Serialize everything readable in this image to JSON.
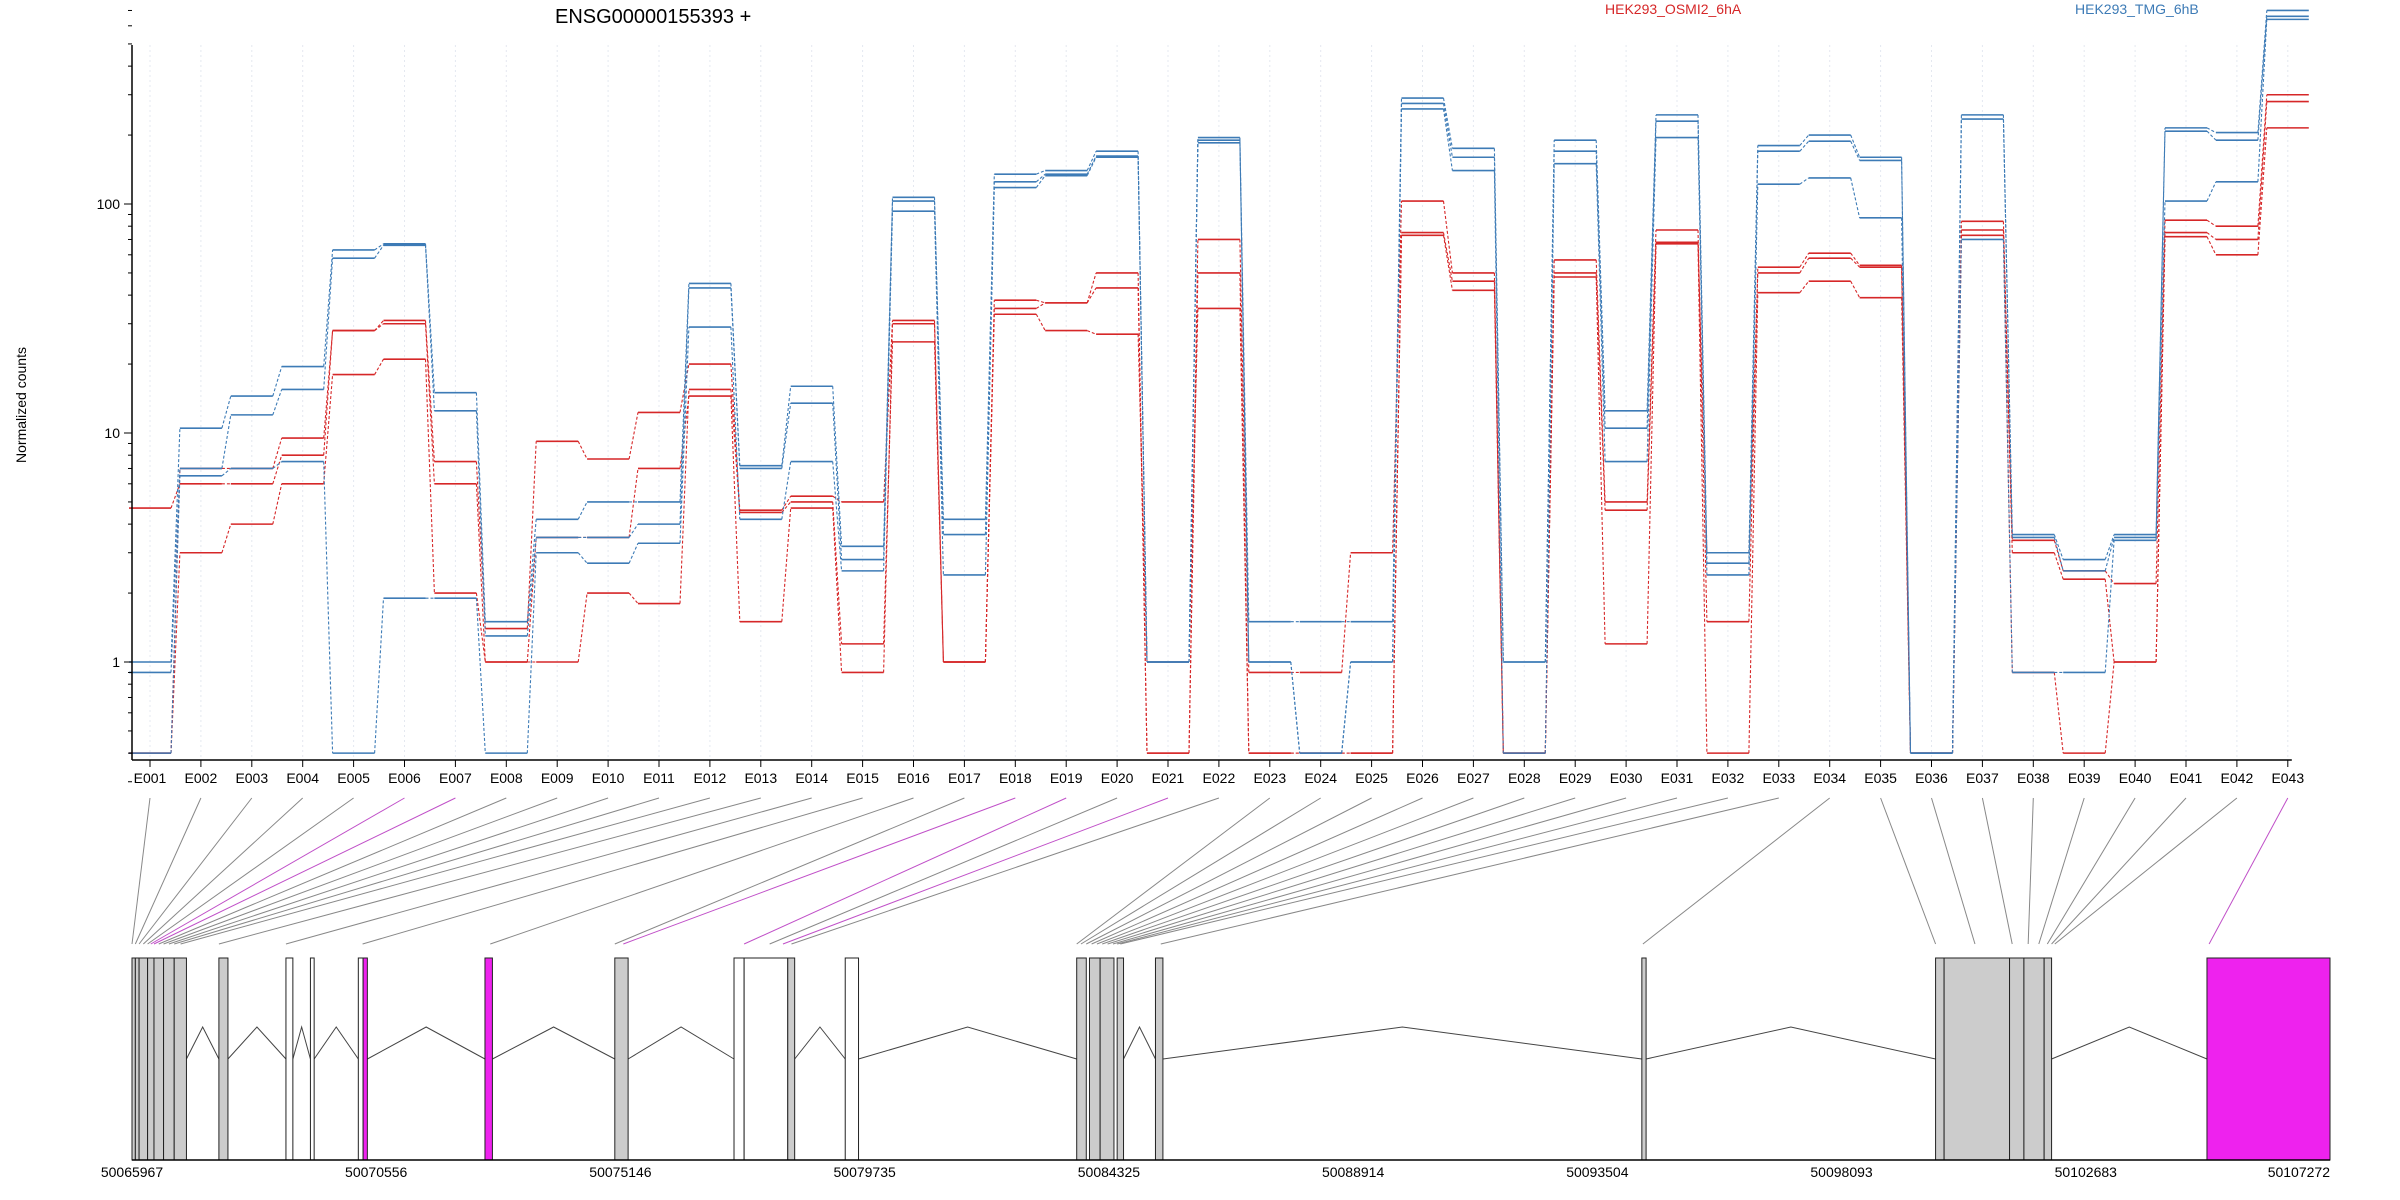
{
  "gene_title": "ENSG00000155393 +",
  "colors": {
    "osmi": "#d62728",
    "tmg": "#3d7bb6",
    "highlight": "#ee22ee",
    "exon_fill": "#cccccc",
    "connector": "#888888"
  },
  "chart_data": {
    "type": "line",
    "title": "ENSG00000155393 +",
    "ylabel": "Normalized counts",
    "yscale": "log",
    "ylim": [
      0.3,
      1000
    ],
    "yticks": [
      {
        "value": 1,
        "label": "1"
      },
      {
        "value": 10,
        "label": "10"
      },
      {
        "value": 100,
        "label": "100"
      }
    ],
    "grid": "vertical",
    "legend": [
      {
        "label": "HEK293_OSMI2_6hA",
        "color": "#d62728"
      },
      {
        "label": "HEK293_TMG_6hB",
        "color": "#3d7bb6"
      }
    ],
    "categories": [
      "E001",
      "E002",
      "E003",
      "E004",
      "E005",
      "E006",
      "E007",
      "E008",
      "E009",
      "E010",
      "E011",
      "E012",
      "E013",
      "E014",
      "E015",
      "E016",
      "E017",
      "E018",
      "E019",
      "E020",
      "E021",
      "E022",
      "E023",
      "E024",
      "E025",
      "E026",
      "E027",
      "E028",
      "E029",
      "E030",
      "E031",
      "E032",
      "E033",
      "E034",
      "E035",
      "E036",
      "E037",
      "E038",
      "E039",
      "E040",
      "E041",
      "E042",
      "E043"
    ],
    "series": [
      {
        "group": "osmi",
        "values": [
          0.4,
          7,
          7,
          9.5,
          28,
          31,
          7.5,
          1.4,
          9.2,
          7.7,
          12.3,
          20,
          4.6,
          5.3,
          5,
          31,
          1,
          38,
          37,
          50,
          0.4,
          70,
          0.9,
          0.9,
          3,
          103,
          50,
          0.4,
          57,
          5,
          77,
          1.5,
          53,
          61,
          54,
          0.4,
          84,
          3.4,
          2.5,
          2.2,
          85,
          80,
          300
        ]
      },
      {
        "group": "osmi",
        "values": [
          4.7,
          6,
          6,
          8,
          28,
          30,
          6,
          1,
          1,
          2,
          1.8,
          15.5,
          4.5,
          5,
          1.2,
          25,
          1,
          35,
          37,
          43,
          0.4,
          50,
          0.4,
          0.4,
          0.4,
          75,
          46,
          0.4,
          50,
          4.6,
          68,
          3,
          50,
          58,
          53,
          0.4,
          77,
          3,
          2.3,
          1,
          75,
          70,
          280
        ]
      },
      {
        "group": "osmi",
        "values": [
          0.4,
          3,
          4,
          6,
          18,
          21,
          2,
          1,
          3.5,
          3.5,
          7,
          14.5,
          1.5,
          4.7,
          0.9,
          30,
          1,
          33,
          28,
          27,
          1,
          35,
          0.4,
          0.4,
          0.4,
          73,
          42,
          0.4,
          48,
          1.2,
          67,
          0.4,
          41,
          46,
          39,
          0.4,
          73,
          0.9,
          0.4,
          1,
          72,
          60,
          215
        ]
      },
      {
        "group": "tmg",
        "values": [
          1,
          10.5,
          14.5,
          19.5,
          63,
          67,
          15,
          1.5,
          4.2,
          5,
          5,
          45,
          7.2,
          16,
          3.2,
          107,
          4.2,
          135,
          140,
          170,
          1,
          195,
          1.5,
          1.5,
          1.5,
          290,
          175,
          1,
          190,
          12.5,
          245,
          3,
          180,
          200,
          160,
          0.4,
          245,
          3.6,
          2.8,
          3.6,
          215,
          205,
          700
        ]
      },
      {
        "group": "tmg",
        "values": [
          0.9,
          7,
          12,
          15.5,
          58,
          66,
          12.5,
          1.3,
          3.5,
          3.5,
          4,
          43,
          7,
          13.5,
          2.8,
          103,
          3.6,
          125,
          135,
          162,
          1,
          190,
          1,
          0.4,
          1,
          275,
          160,
          1,
          170,
          10.5,
          230,
          2.7,
          170,
          188,
          155,
          0.4,
          235,
          3.5,
          2.5,
          3.5,
          208,
          190,
          660
        ]
      },
      {
        "group": "tmg",
        "values": [
          0.4,
          6.5,
          7,
          7.5,
          0.4,
          1.9,
          1.9,
          0.4,
          3,
          2.7,
          3.3,
          29,
          4.2,
          7.5,
          2.5,
          93,
          2.4,
          118,
          133,
          160,
          1,
          185,
          1,
          0.4,
          1,
          260,
          140,
          0.4,
          150,
          7.5,
          195,
          2.4,
          122,
          130,
          87,
          0.4,
          70,
          0.9,
          0.9,
          3.4,
          103,
          125,
          640
        ]
      }
    ]
  },
  "gene_model": {
    "coordinate_labels": [
      "50065967",
      "50070556",
      "50075146",
      "50079735",
      "50084325",
      "50088914",
      "50093504",
      "50098093",
      "50102683",
      "50107272"
    ],
    "genomic_range": [
      50065967,
      50107272
    ],
    "exons": [
      {
        "start": 50065967,
        "end": 50066030,
        "type": "grey"
      },
      {
        "start": 50066030,
        "end": 50066100,
        "type": "grey"
      },
      {
        "start": 50066100,
        "end": 50066260,
        "type": "grey"
      },
      {
        "start": 50066260,
        "end": 50066380,
        "type": "grey"
      },
      {
        "start": 50066380,
        "end": 50066560,
        "type": "grey"
      },
      {
        "start": 50066560,
        "end": 50066760,
        "type": "grey"
      },
      {
        "start": 50066760,
        "end": 50066990,
        "type": "grey"
      },
      {
        "start": 50067600,
        "end": 50067770,
        "type": "grey"
      },
      {
        "start": 50068860,
        "end": 50068990,
        "type": "white"
      },
      {
        "start": 50069320,
        "end": 50069390,
        "type": "white"
      },
      {
        "start": 50070220,
        "end": 50070310,
        "type": "white"
      },
      {
        "start": 50070310,
        "end": 50070390,
        "type": "pink"
      },
      {
        "start": 50072600,
        "end": 50072740,
        "type": "pink"
      },
      {
        "start": 50075040,
        "end": 50075290,
        "type": "grey"
      },
      {
        "start": 50077280,
        "end": 50077470,
        "type": "white"
      },
      {
        "start": 50077470,
        "end": 50078290,
        "type": "white"
      },
      {
        "start": 50078290,
        "end": 50078420,
        "type": "grey"
      },
      {
        "start": 50079370,
        "end": 50079620,
        "type": "white"
      },
      {
        "start": 50083720,
        "end": 50083900,
        "type": "grey"
      },
      {
        "start": 50083960,
        "end": 50084160,
        "type": "grey"
      },
      {
        "start": 50084160,
        "end": 50084420,
        "type": "grey"
      },
      {
        "start": 50084480,
        "end": 50084600,
        "type": "grey"
      },
      {
        "start": 50085200,
        "end": 50085340,
        "type": "grey"
      },
      {
        "start": 50094340,
        "end": 50094420,
        "type": "grey"
      },
      {
        "start": 50099860,
        "end": 50100020,
        "type": "grey"
      },
      {
        "start": 50100020,
        "end": 50101250,
        "type": "grey"
      },
      {
        "start": 50101250,
        "end": 50101520,
        "type": "grey"
      },
      {
        "start": 50101520,
        "end": 50101900,
        "type": "grey"
      },
      {
        "start": 50101900,
        "end": 50102040,
        "type": "grey"
      },
      {
        "start": 50104960,
        "end": 50107272,
        "type": "pink"
      }
    ],
    "introns": [
      [
        50066990,
        50067600
      ],
      [
        50067770,
        50068860
      ],
      [
        50068990,
        50069320
      ],
      [
        50069390,
        50070220
      ],
      [
        50070390,
        50072600
      ],
      [
        50072740,
        50075040
      ],
      [
        50075290,
        50077280
      ],
      [
        50078420,
        50079370
      ],
      [
        50079620,
        50083720
      ],
      [
        50084600,
        50085200
      ],
      [
        50085340,
        50094340
      ],
      [
        50094420,
        50099860
      ],
      [
        50102040,
        50104960
      ]
    ],
    "connector_targets": [
      50065967,
      50066030,
      50066100,
      50066180,
      50066260,
      50066320,
      50066380,
      50066470,
      50066560,
      50066660,
      50066760,
      50066880,
      50067600,
      50068860,
      50070300,
      50072700,
      50075040,
      50075200,
      50077470,
      50077950,
      50078200,
      50078360,
      50083720,
      50083800,
      50083900,
      50084000,
      50084100,
      50084200,
      50084300,
      50084400,
      50084480,
      50084540,
      50085300,
      50094360,
      50099860,
      50100600,
      50101300,
      50101600,
      50101800,
      50101960,
      50102040,
      50102100,
      50105000
    ],
    "highlighted_connectors": [
      5,
      6,
      17,
      18,
      20,
      42
    ]
  }
}
